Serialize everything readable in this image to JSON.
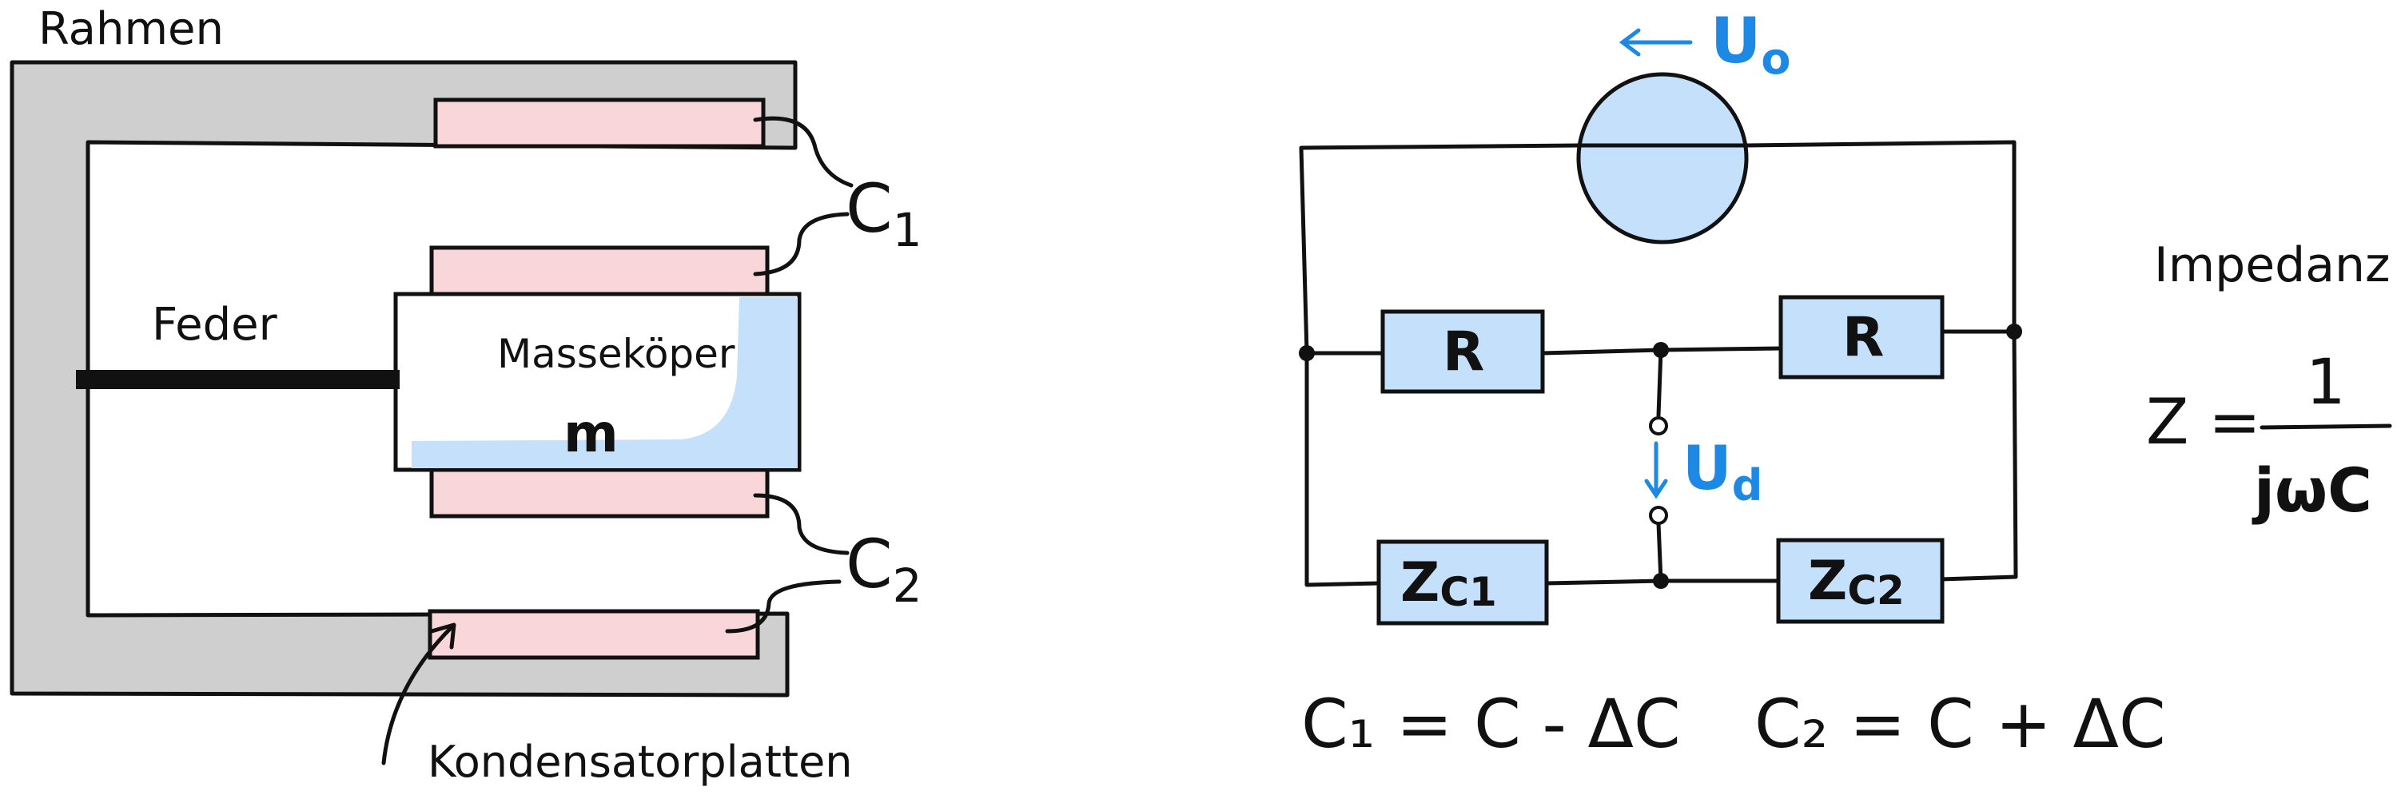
{
  "mechanical": {
    "frame_label": "Rahmen",
    "spring_label": "Feder",
    "mass_label": "Masseköper",
    "mass_symbol": "m",
    "cap1_label": "C",
    "cap1_sub": "1",
    "cap2_label": "C",
    "cap2_sub": "2",
    "plates_label": "Kondensatorplatten"
  },
  "circuit": {
    "source_label": "U",
    "source_sub": "o",
    "diff_label": "U",
    "diff_sub": "d",
    "r_left": "R",
    "r_right": "R",
    "zc1_main": "Z",
    "zc1_sub": "C1",
    "zc2_main": "Z",
    "zc2_sub": "C2",
    "eq1": "C₁ = C - ΔC",
    "eq2": "C₂ = C + ΔC"
  },
  "impedance": {
    "label": "Impedanz :",
    "lhs": "Z =",
    "numerator": "1",
    "denominator": "jωC"
  },
  "colors": {
    "frame_gray": "#cfcfcf",
    "plate_pink": "#f9d6d9",
    "highlight_blue": "#c4e0fa",
    "accent_blue": "#1e88e5",
    "ink": "#111111"
  }
}
